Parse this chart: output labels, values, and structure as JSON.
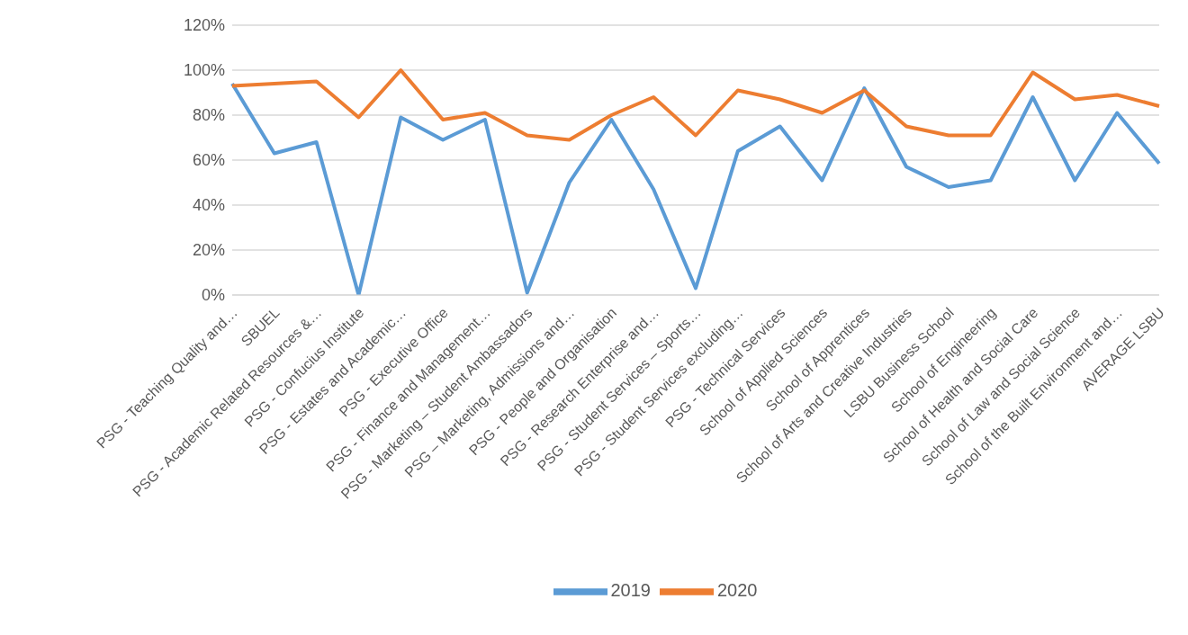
{
  "chart_data": {
    "type": "line",
    "categories": [
      "PSG - Teaching Quality and…",
      "SBUEL",
      "PSG - Academic Related Resources &…",
      "PSG - Confucius Institute",
      "PSG - Estates and Academic…",
      "PSG - Executive Office",
      "PSG - Finance and Management…",
      "PSG - Marketing – Student Ambassadors",
      "PSG – Marketing, Admissions and…",
      "PSG - People and Organisation",
      "PSG - Research Enterprise and…",
      "PSG - Student Services – Sports…",
      "PSG - Student Services excluding…",
      "PSG - Technical Services",
      "School of Applied Sciences",
      "School of Apprentices",
      "School of Arts and Creative Industries",
      "LSBU Business School",
      "School of Engineering",
      "School of Health and Social Care",
      "School of Law and Social Science",
      "School of the Built Environment and…",
      "AVERAGE LSBU"
    ],
    "series": [
      {
        "name": "2019",
        "color": "#5b9bd5",
        "values": [
          94,
          63,
          68,
          0,
          79,
          69,
          78,
          1,
          50,
          78,
          47,
          3,
          64,
          75,
          51,
          92,
          57,
          48,
          51,
          88,
          51,
          81,
          58.5
        ]
      },
      {
        "name": "2020",
        "color": "#ed7d31",
        "values": [
          93,
          94,
          95,
          79,
          100,
          78,
          81,
          71,
          69,
          80,
          88,
          71,
          91,
          87,
          81,
          91,
          75,
          71,
          71,
          99,
          87,
          89,
          84
        ]
      }
    ],
    "ylim": [
      0,
      120
    ],
    "yticks": [
      {
        "value": 0,
        "label": "0%"
      },
      {
        "value": 20,
        "label": "20%"
      },
      {
        "value": 40,
        "label": "40%"
      },
      {
        "value": 60,
        "label": "60%"
      },
      {
        "value": 80,
        "label": "80%"
      },
      {
        "value": 100,
        "label": "100%"
      },
      {
        "value": 120,
        "label": "120%"
      }
    ],
    "grid": "y",
    "legend": "bottom",
    "marker": "none",
    "line_style": "solid"
  }
}
